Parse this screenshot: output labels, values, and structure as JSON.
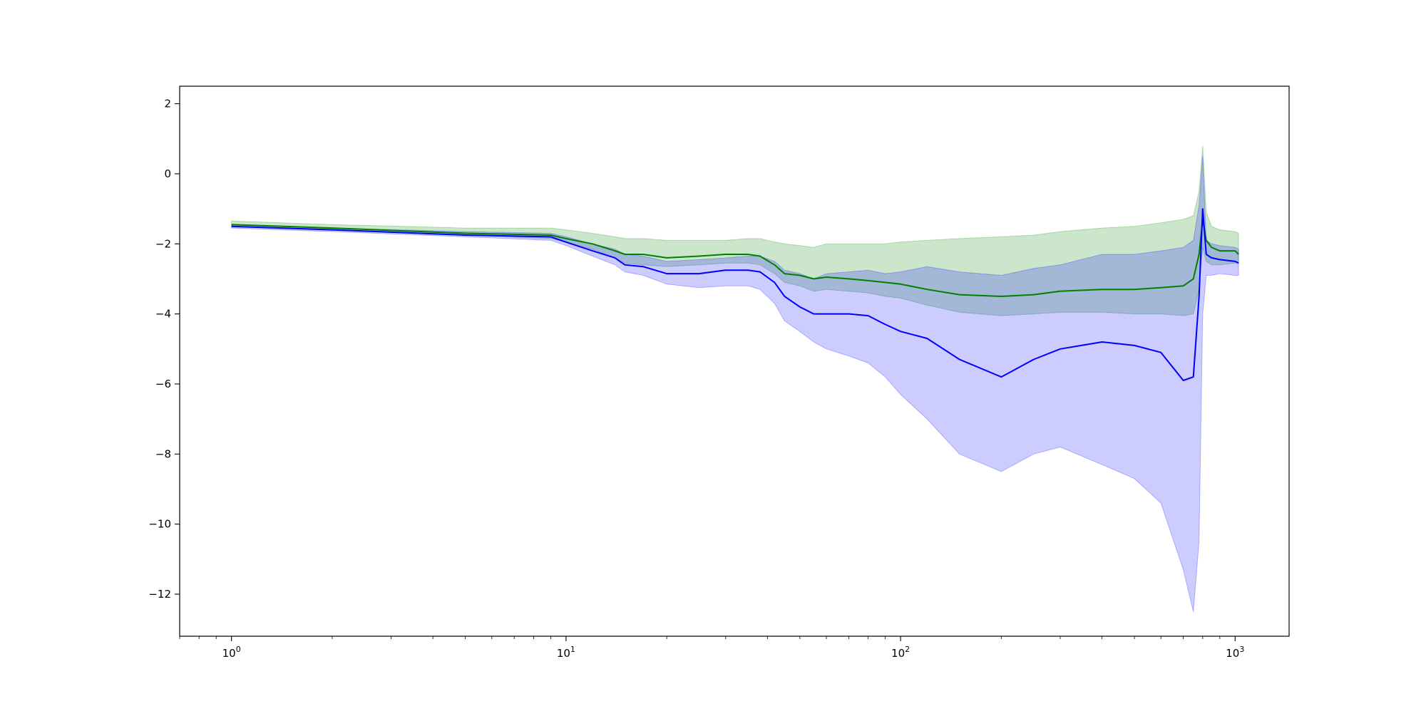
{
  "chart_data": {
    "type": "line",
    "title": "",
    "xlabel": "",
    "ylabel": "",
    "xscale": "log",
    "xlim": [
      0.7,
      1450
    ],
    "ylim": [
      -13.2,
      2.5
    ],
    "grid": false,
    "legend": "none",
    "x_ticks": [
      {
        "value": 1,
        "base": "10",
        "exp": "0"
      },
      {
        "value": 10,
        "base": "10",
        "exp": "1"
      },
      {
        "value": 100,
        "base": "10",
        "exp": "2"
      },
      {
        "value": 1000,
        "base": "10",
        "exp": "3"
      }
    ],
    "y_ticks": [
      {
        "value": 2,
        "label": "2"
      },
      {
        "value": 0,
        "label": "0"
      },
      {
        "value": -2,
        "label": "−2"
      },
      {
        "value": -4,
        "label": "−4"
      },
      {
        "value": -6,
        "label": "−6"
      },
      {
        "value": -8,
        "label": "−8"
      },
      {
        "value": -10,
        "label": "−10"
      },
      {
        "value": -12,
        "label": "−12"
      }
    ],
    "series": [
      {
        "color": "#008000",
        "band_color": "#008000",
        "band_opacity": 0.2,
        "x": [
          1,
          2,
          5,
          9,
          10,
          12,
          14,
          15,
          17,
          20,
          25,
          30,
          35,
          38,
          42,
          45,
          50,
          55,
          60,
          70,
          80,
          90,
          100,
          120,
          150,
          200,
          250,
          300,
          400,
          500,
          600,
          700,
          750,
          780,
          800,
          820,
          850,
          900,
          1000,
          1024
        ],
        "y": [
          -1.45,
          -1.55,
          -1.7,
          -1.75,
          -1.85,
          -2.0,
          -2.2,
          -2.3,
          -2.3,
          -2.4,
          -2.35,
          -2.3,
          -2.3,
          -2.35,
          -2.6,
          -2.85,
          -2.9,
          -3.0,
          -2.95,
          -3.0,
          -3.05,
          -3.1,
          -3.15,
          -3.3,
          -3.45,
          -3.5,
          -3.45,
          -3.35,
          -3.3,
          -3.3,
          -3.25,
          -3.2,
          -3.0,
          -2.3,
          -1.3,
          -1.9,
          -2.1,
          -2.2,
          -2.2,
          -2.3
        ],
        "lower": [
          -1.5,
          -1.6,
          -1.75,
          -1.85,
          -1.95,
          -2.15,
          -2.4,
          -2.55,
          -2.6,
          -2.65,
          -2.6,
          -2.55,
          -2.55,
          -2.6,
          -2.85,
          -3.1,
          -3.2,
          -3.35,
          -3.3,
          -3.35,
          -3.4,
          -3.5,
          -3.55,
          -3.75,
          -3.95,
          -4.05,
          -4.0,
          -3.95,
          -3.95,
          -4.0,
          -4.0,
          -4.05,
          -4.0,
          -3.3,
          -2.1,
          -2.5,
          -2.6,
          -2.6,
          -2.55,
          -2.55
        ],
        "upper": [
          -1.35,
          -1.45,
          -1.55,
          -1.55,
          -1.6,
          -1.7,
          -1.8,
          -1.85,
          -1.85,
          -1.9,
          -1.9,
          -1.9,
          -1.85,
          -1.85,
          -1.95,
          -2.0,
          -2.05,
          -2.1,
          -2.0,
          -2.0,
          -2.0,
          -2.0,
          -1.95,
          -1.9,
          -1.85,
          -1.8,
          -1.75,
          -1.65,
          -1.55,
          -1.5,
          -1.4,
          -1.3,
          -1.2,
          -0.5,
          0.8,
          -1.1,
          -1.5,
          -1.6,
          -1.65,
          -1.7
        ]
      },
      {
        "color": "#0000ff",
        "band_color": "#0000ff",
        "band_opacity": 0.2,
        "x": [
          1,
          2,
          5,
          9,
          10,
          12,
          14,
          15,
          17,
          20,
          25,
          30,
          35,
          38,
          42,
          45,
          50,
          55,
          60,
          70,
          80,
          90,
          100,
          120,
          150,
          200,
          250,
          300,
          400,
          500,
          600,
          700,
          750,
          780,
          800,
          820,
          850,
          900,
          1000,
          1024
        ],
        "y": [
          -1.5,
          -1.6,
          -1.75,
          -1.8,
          -1.95,
          -2.2,
          -2.4,
          -2.6,
          -2.65,
          -2.85,
          -2.85,
          -2.75,
          -2.75,
          -2.8,
          -3.1,
          -3.5,
          -3.8,
          -4.0,
          -4.0,
          -4.0,
          -4.05,
          -4.3,
          -4.5,
          -4.7,
          -5.3,
          -5.8,
          -5.3,
          -5.0,
          -4.8,
          -4.9,
          -5.1,
          -5.9,
          -5.8,
          -3.5,
          -1.0,
          -2.3,
          -2.4,
          -2.45,
          -2.5,
          -2.55
        ],
        "lower": [
          -1.55,
          -1.65,
          -1.8,
          -1.9,
          -2.05,
          -2.35,
          -2.6,
          -2.8,
          -2.9,
          -3.15,
          -3.25,
          -3.2,
          -3.2,
          -3.3,
          -3.7,
          -4.2,
          -4.5,
          -4.8,
          -5.0,
          -5.2,
          -5.4,
          -5.8,
          -6.3,
          -7.0,
          -8.0,
          -8.5,
          -8.0,
          -7.8,
          -8.3,
          -8.7,
          -9.4,
          -11.3,
          -12.5,
          -10.5,
          -4.0,
          -2.9,
          -2.9,
          -2.85,
          -2.9,
          -2.9
        ],
        "upper": [
          -1.45,
          -1.55,
          -1.65,
          -1.7,
          -1.8,
          -2.0,
          -2.15,
          -2.3,
          -2.35,
          -2.5,
          -2.45,
          -2.4,
          -2.35,
          -2.35,
          -2.5,
          -2.75,
          -2.85,
          -3.0,
          -2.85,
          -2.8,
          -2.75,
          -2.85,
          -2.8,
          -2.65,
          -2.8,
          -2.9,
          -2.7,
          -2.6,
          -2.3,
          -2.3,
          -2.2,
          -2.1,
          -1.9,
          -0.9,
          0.5,
          -1.9,
          -2.0,
          -2.05,
          -2.1,
          -2.15
        ]
      }
    ]
  }
}
